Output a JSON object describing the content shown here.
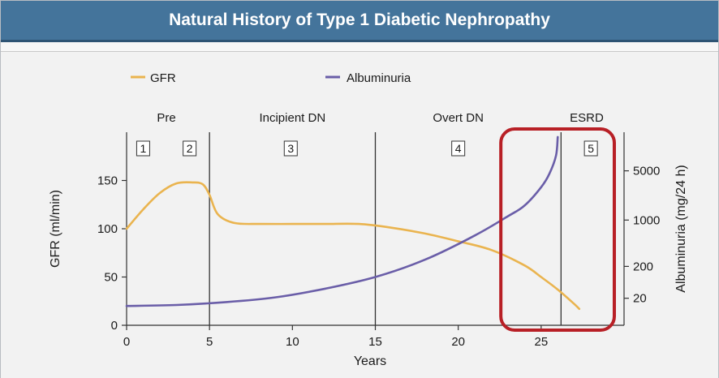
{
  "title": "Natural History of Type 1 Diabetic Nephropathy",
  "colors": {
    "header": "#44749b",
    "gfr": "#eab44f",
    "albuminuria": "#6a5ea8",
    "highlight": "#b82026",
    "axis": "#333333"
  },
  "chart_data": {
    "type": "line",
    "title": "Natural History of Type 1 Diabetic Nephropathy",
    "xlabel": "Years",
    "ylabel": "GFR (ml/min)",
    "y2label": "Albuminuria (mg/24 h)",
    "xlim": [
      0,
      30
    ],
    "ylim": [
      0,
      200
    ],
    "x_ticks": [
      0,
      5,
      10,
      15,
      20,
      25
    ],
    "y_ticks": [
      0,
      50,
      100,
      150
    ],
    "y2_ticks": [
      {
        "label": "5000",
        "gfr_equiv": 160
      },
      {
        "label": "1000",
        "gfr_equiv": 109
      },
      {
        "label": "200",
        "gfr_equiv": 61
      },
      {
        "label": "20",
        "gfr_equiv": 28
      }
    ],
    "legend": [
      {
        "name": "GFR",
        "color": "#eab44f"
      },
      {
        "name": "Albuminuria",
        "color": "#6a5ea8"
      }
    ],
    "stages": [
      {
        "name": "Pre",
        "start": 0,
        "end": 5,
        "center": 2.4
      },
      {
        "name": "Incipient DN",
        "start": 5,
        "end": 15,
        "center": 10
      },
      {
        "name": "Overt DN",
        "start": 15,
        "end": 26.2,
        "center": 20
      },
      {
        "name": "ESRD",
        "start": 26.2,
        "end": 30,
        "center": 26.6
      }
    ],
    "stage_boundaries": [
      5,
      15,
      26.2
    ],
    "phase_boxes": [
      {
        "label": "1",
        "x": 1.0
      },
      {
        "label": "2",
        "x": 3.8
      },
      {
        "label": "3",
        "x": 9.9
      },
      {
        "label": "4",
        "x": 20.0
      },
      {
        "label": "5",
        "x": 28.0
      }
    ],
    "highlight_region": {
      "x_start": 23.5,
      "x_end": 30,
      "note": "ESRD transition highlighted"
    },
    "series": [
      {
        "name": "GFR",
        "points": [
          [
            0,
            100
          ],
          [
            1,
            120
          ],
          [
            2,
            137
          ],
          [
            3,
            147
          ],
          [
            4,
            148
          ],
          [
            4.6,
            146
          ],
          [
            5,
            135
          ],
          [
            5.5,
            115
          ],
          [
            6.5,
            106
          ],
          [
            8,
            105
          ],
          [
            10,
            105
          ],
          [
            12,
            105
          ],
          [
            14,
            105
          ],
          [
            16,
            101
          ],
          [
            18,
            95
          ],
          [
            20,
            87
          ],
          [
            22,
            78
          ],
          [
            24,
            62
          ],
          [
            25,
            50
          ],
          [
            26,
            37
          ],
          [
            27,
            22
          ],
          [
            27.3,
            17
          ]
        ]
      },
      {
        "name": "Albuminuria",
        "points": [
          [
            0,
            20
          ],
          [
            3,
            21
          ],
          [
            6,
            24
          ],
          [
            9,
            29
          ],
          [
            12,
            38
          ],
          [
            15,
            50
          ],
          [
            18,
            68
          ],
          [
            21,
            93
          ],
          [
            23,
            113
          ],
          [
            24,
            124
          ],
          [
            25,
            143
          ],
          [
            25.5,
            157
          ],
          [
            25.9,
            176
          ],
          [
            26,
            195
          ]
        ]
      }
    ]
  }
}
